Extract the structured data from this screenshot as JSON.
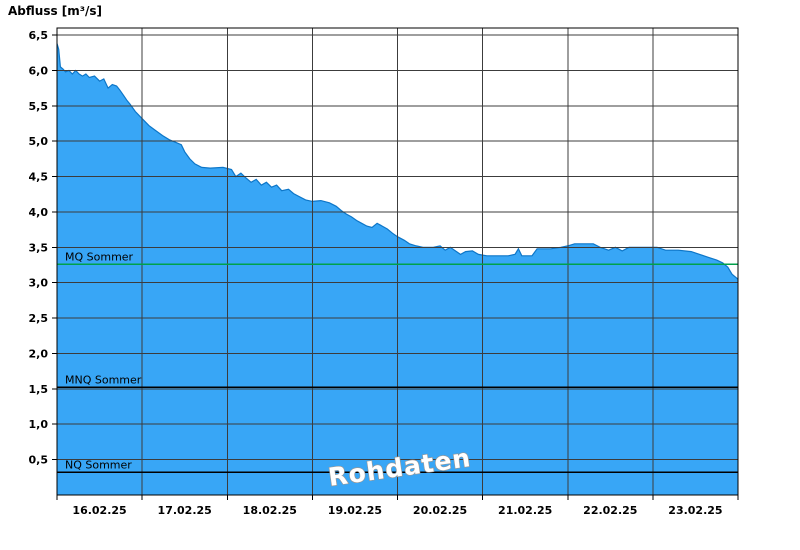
{
  "chart_data": {
    "type": "area",
    "title": "Abfluss [m³/s]",
    "watermark": "Rohdaten",
    "legend": "none",
    "grid": true,
    "x_labels": [
      "16.02.25",
      "17.02.25",
      "18.02.25",
      "19.02.25",
      "20.02.25",
      "21.02.25",
      "22.02.25",
      "23.02.25"
    ],
    "x_range": [
      0,
      8
    ],
    "ylim": [
      0,
      6.6
    ],
    "y_tick_max_label": "6,5",
    "y_ticks": [
      {
        "v": 0.5,
        "label": "0,5"
      },
      {
        "v": 1.0,
        "label": "1,0"
      },
      {
        "v": 1.5,
        "label": "1,5"
      },
      {
        "v": 2.0,
        "label": "2,0"
      },
      {
        "v": 2.5,
        "label": "2,5"
      },
      {
        "v": 3.0,
        "label": "3,0"
      },
      {
        "v": 3.5,
        "label": "3,5"
      },
      {
        "v": 4.0,
        "label": "4,0"
      },
      {
        "v": 4.5,
        "label": "4,5"
      },
      {
        "v": 5.0,
        "label": "5,0"
      },
      {
        "v": 5.5,
        "label": "5,5"
      },
      {
        "v": 6.0,
        "label": "6,0"
      },
      {
        "v": 6.5,
        "label": "6,5"
      }
    ],
    "reference_lines": [
      {
        "label": "MQ Sommer",
        "value": 3.26,
        "color": "#00A14B"
      },
      {
        "label": "MNQ Sommer",
        "value": 1.52,
        "color": "#000000"
      },
      {
        "label": "NQ Sommer",
        "value": 0.32,
        "color": "#000000"
      }
    ],
    "series": [
      {
        "name": "Abfluss Rohdaten",
        "unit": "m³/s",
        "points": [
          [
            0.0,
            6.38
          ],
          [
            0.02,
            6.3
          ],
          [
            0.04,
            6.05
          ],
          [
            0.07,
            6.02
          ],
          [
            0.1,
            5.98
          ],
          [
            0.14,
            6.0
          ],
          [
            0.18,
            5.95
          ],
          [
            0.22,
            6.0
          ],
          [
            0.26,
            5.95
          ],
          [
            0.3,
            5.92
          ],
          [
            0.34,
            5.95
          ],
          [
            0.38,
            5.9
          ],
          [
            0.44,
            5.92
          ],
          [
            0.5,
            5.85
          ],
          [
            0.55,
            5.88
          ],
          [
            0.6,
            5.75
          ],
          [
            0.65,
            5.8
          ],
          [
            0.7,
            5.78
          ],
          [
            0.74,
            5.72
          ],
          [
            0.78,
            5.65
          ],
          [
            0.82,
            5.58
          ],
          [
            0.86,
            5.52
          ],
          [
            0.92,
            5.42
          ],
          [
            1.0,
            5.32
          ],
          [
            1.08,
            5.22
          ],
          [
            1.16,
            5.15
          ],
          [
            1.24,
            5.08
          ],
          [
            1.32,
            5.02
          ],
          [
            1.4,
            4.98
          ],
          [
            1.46,
            4.95
          ],
          [
            1.5,
            4.85
          ],
          [
            1.56,
            4.75
          ],
          [
            1.62,
            4.68
          ],
          [
            1.7,
            4.63
          ],
          [
            1.8,
            4.62
          ],
          [
            1.95,
            4.63
          ],
          [
            2.05,
            4.6
          ],
          [
            2.1,
            4.5
          ],
          [
            2.16,
            4.55
          ],
          [
            2.22,
            4.48
          ],
          [
            2.28,
            4.42
          ],
          [
            2.34,
            4.46
          ],
          [
            2.4,
            4.38
          ],
          [
            2.46,
            4.42
          ],
          [
            2.52,
            4.35
          ],
          [
            2.58,
            4.38
          ],
          [
            2.64,
            4.3
          ],
          [
            2.72,
            4.32
          ],
          [
            2.78,
            4.26
          ],
          [
            2.84,
            4.22
          ],
          [
            2.92,
            4.17
          ],
          [
            3.0,
            4.15
          ],
          [
            3.1,
            4.16
          ],
          [
            3.2,
            4.13
          ],
          [
            3.28,
            4.08
          ],
          [
            3.34,
            4.02
          ],
          [
            3.4,
            3.97
          ],
          [
            3.46,
            3.93
          ],
          [
            3.52,
            3.88
          ],
          [
            3.58,
            3.84
          ],
          [
            3.64,
            3.8
          ],
          [
            3.7,
            3.78
          ],
          [
            3.76,
            3.84
          ],
          [
            3.82,
            3.8
          ],
          [
            3.88,
            3.76
          ],
          [
            3.94,
            3.7
          ],
          [
            4.0,
            3.65
          ],
          [
            4.08,
            3.6
          ],
          [
            4.14,
            3.55
          ],
          [
            4.22,
            3.52
          ],
          [
            4.3,
            3.5
          ],
          [
            4.42,
            3.5
          ],
          [
            4.5,
            3.52
          ],
          [
            4.56,
            3.46
          ],
          [
            4.62,
            3.5
          ],
          [
            4.68,
            3.45
          ],
          [
            4.74,
            3.4
          ],
          [
            4.8,
            3.44
          ],
          [
            4.88,
            3.45
          ],
          [
            4.95,
            3.4
          ],
          [
            5.05,
            3.38
          ],
          [
            5.3,
            3.38
          ],
          [
            5.38,
            3.4
          ],
          [
            5.42,
            3.48
          ],
          [
            5.46,
            3.38
          ],
          [
            5.58,
            3.38
          ],
          [
            5.64,
            3.48
          ],
          [
            5.8,
            3.48
          ],
          [
            5.92,
            3.5
          ],
          [
            6.0,
            3.52
          ],
          [
            6.08,
            3.55
          ],
          [
            6.3,
            3.55
          ],
          [
            6.38,
            3.5
          ],
          [
            6.48,
            3.46
          ],
          [
            6.56,
            3.5
          ],
          [
            6.64,
            3.45
          ],
          [
            6.72,
            3.5
          ],
          [
            6.9,
            3.5
          ],
          [
            7.05,
            3.5
          ],
          [
            7.15,
            3.46
          ],
          [
            7.3,
            3.46
          ],
          [
            7.45,
            3.44
          ],
          [
            7.55,
            3.4
          ],
          [
            7.65,
            3.36
          ],
          [
            7.75,
            3.32
          ],
          [
            7.82,
            3.28
          ],
          [
            7.88,
            3.22
          ],
          [
            7.93,
            3.12
          ],
          [
            8.0,
            3.05
          ]
        ]
      }
    ],
    "colors": {
      "area_fill": "#38A6F6",
      "area_stroke": "#0D76C8",
      "grid": "#3c3c3c",
      "border": "#000000",
      "background": "#ffffff",
      "text": "#000000"
    }
  }
}
